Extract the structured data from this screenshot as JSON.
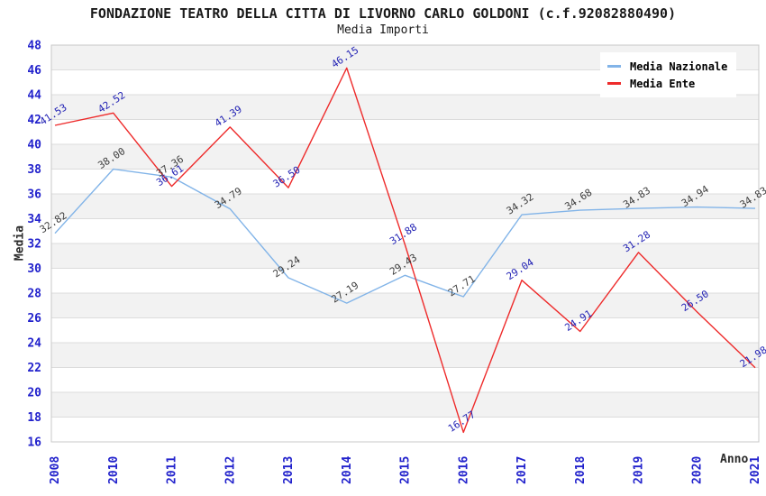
{
  "header": {
    "title": "FONDAZIONE TEATRO DELLA CITTA DI LIVORNO CARLO GOLDONI (c.f.92082880490)",
    "subtitle": "Media Importi"
  },
  "axes": {
    "y_label": "Media",
    "x_label": "Anno"
  },
  "legend": {
    "items": [
      {
        "label": "Media Nazionale",
        "color": "#82b4e8"
      },
      {
        "label": "Media Ente",
        "color": "#ee2b2b"
      }
    ]
  },
  "colors": {
    "tick_label": "#2222cc",
    "band_fill": "#f2f2f2",
    "grid_line": "#dcdcdc",
    "plot_border": "#c8c8c8",
    "title_text": "#1a1a1a"
  },
  "chart_data": {
    "type": "line",
    "title": "FONDAZIONE TEATRO DELLA CITTA DI LIVORNO CARLO GOLDONI (c.f.92082880490)",
    "subtitle": "Media Importi",
    "xlabel": "Anno",
    "ylabel": "Media",
    "ylim": [
      16,
      48
    ],
    "y_tick_step": 2,
    "grid": "horizontal-only, alternating shaded bands",
    "legend_position": "top-right",
    "categories": [
      2008,
      2010,
      2011,
      2012,
      2013,
      2014,
      2015,
      2016,
      2017,
      2018,
      2019,
      2020,
      2021
    ],
    "series": [
      {
        "name": "Media Nazionale",
        "color": "#82b4e8",
        "label_color": "#3d3d3d",
        "values": [
          32.82,
          38.0,
          37.36,
          34.79,
          29.24,
          27.19,
          29.43,
          27.71,
          34.32,
          34.68,
          34.83,
          34.94,
          34.83
        ]
      },
      {
        "name": "Media Ente",
        "color": "#ee2b2b",
        "label_color": "#2222b4",
        "values": [
          41.53,
          42.52,
          36.61,
          41.39,
          36.5,
          46.15,
          31.88,
          16.77,
          29.04,
          24.91,
          31.28,
          26.5,
          21.98
        ]
      }
    ]
  }
}
